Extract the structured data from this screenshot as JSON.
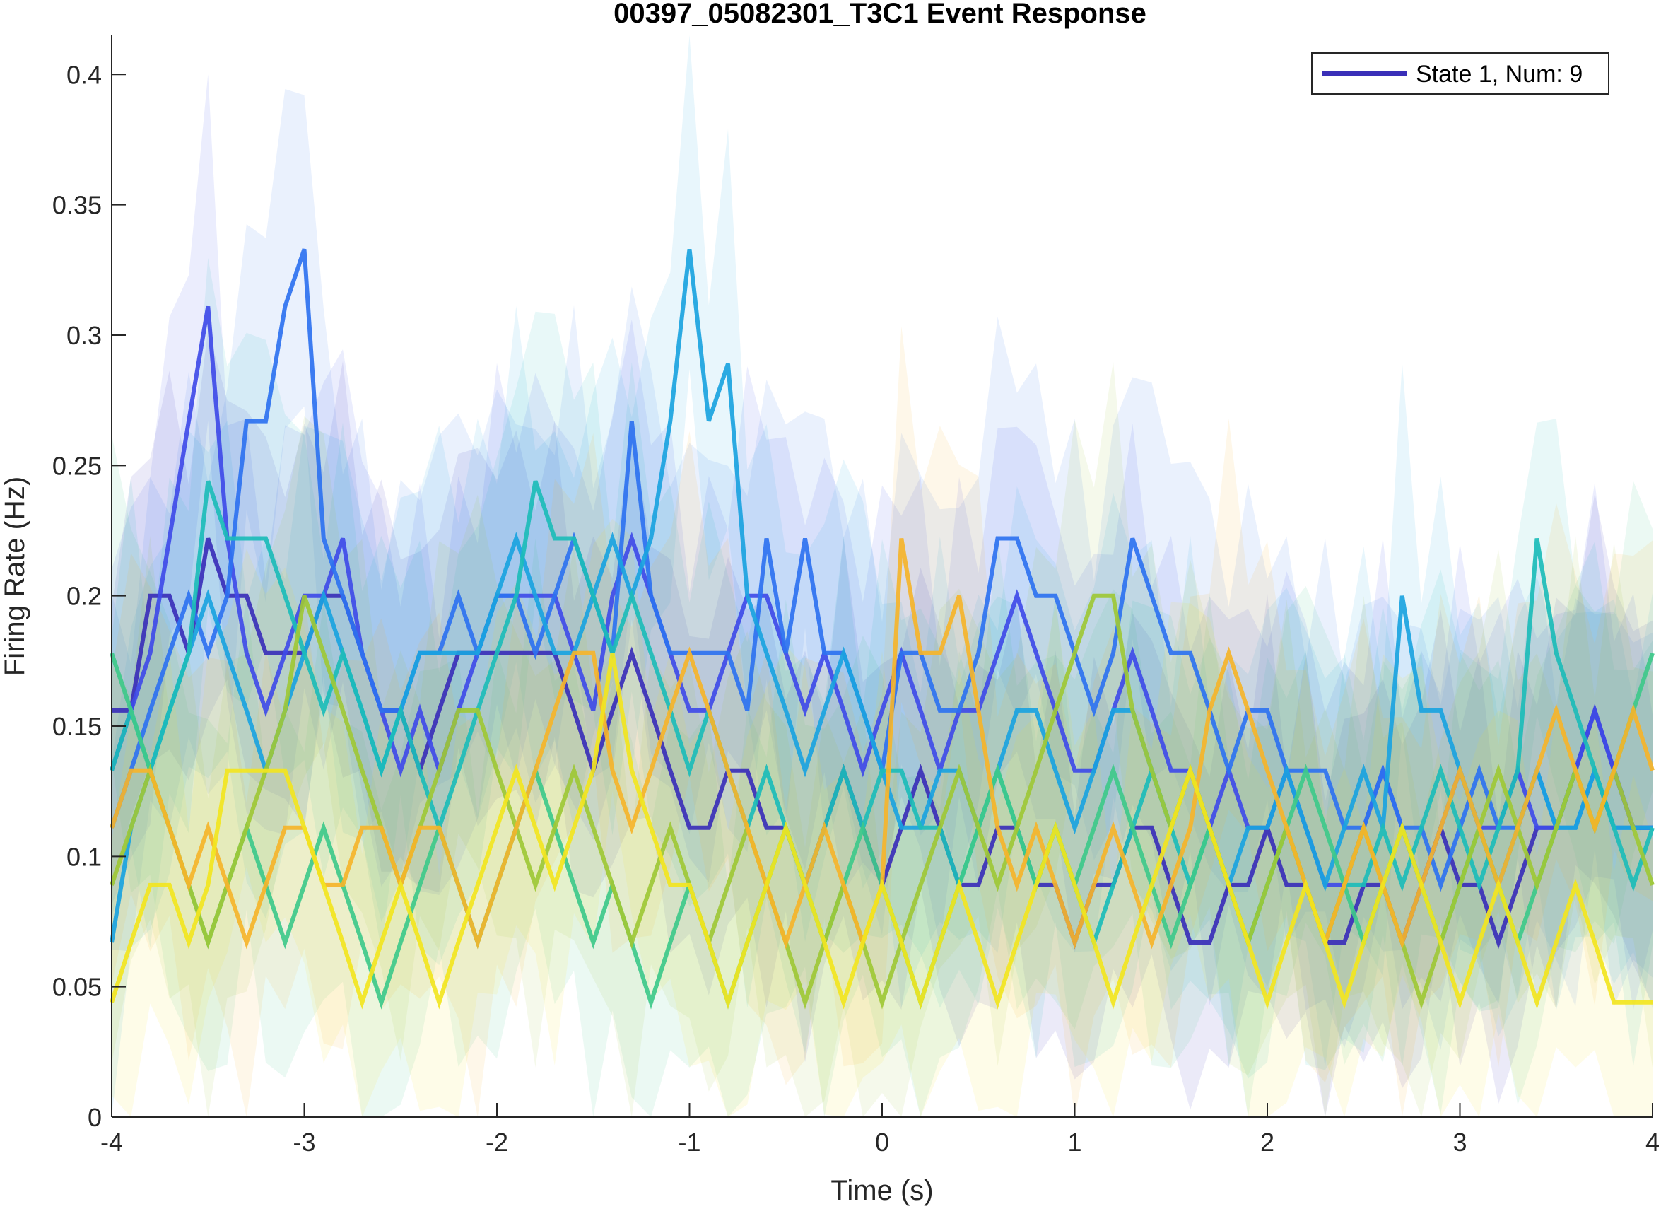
{
  "chart_data": {
    "type": "line",
    "title": "00397_05082301_T3C1 Event Response",
    "xlabel": "Time (s)",
    "ylabel": "Firing Rate (Hz)",
    "xlim": [
      -4,
      4
    ],
    "ylim": [
      0,
      0.415
    ],
    "xticks": [
      -4,
      -3,
      -2,
      -1,
      0,
      1,
      2,
      3,
      4
    ],
    "xtick_labels": [
      "-4",
      "-3",
      "-2",
      "-1",
      "0",
      "1",
      "2",
      "3",
      "4"
    ],
    "yticks": [
      0,
      0.05,
      0.1,
      0.15,
      0.2,
      0.25,
      0.3,
      0.35,
      0.4
    ],
    "ytick_labels": [
      "0",
      "0.05",
      "0.1",
      "0.15",
      "0.2",
      "0.25",
      "0.3",
      "0.35",
      "0.4"
    ],
    "grid": false,
    "legend": {
      "position": "top-right",
      "entries": [
        {
          "label": "State 1, Num: 9",
          "color": "#3a2fb8"
        }
      ]
    },
    "x": [
      -4.0,
      -3.9,
      -3.8,
      -3.7,
      -3.6,
      -3.5,
      -3.4,
      -3.3,
      -3.2,
      -3.1,
      -3.0,
      -2.9,
      -2.8,
      -2.7,
      -2.6,
      -2.5,
      -2.4,
      -2.3,
      -2.2,
      -2.1,
      -2.0,
      -1.9,
      -1.8,
      -1.7,
      -1.6,
      -1.5,
      -1.4,
      -1.3,
      -1.2,
      -1.1,
      -1.0,
      -0.9,
      -0.8,
      -0.7,
      -0.6,
      -0.5,
      -0.4,
      -0.3,
      -0.2,
      -0.1,
      0.0,
      0.1,
      0.2,
      0.3,
      0.4,
      0.5,
      0.6,
      0.7,
      0.8,
      0.9,
      1.0,
      1.1,
      1.2,
      1.3,
      1.4,
      1.5,
      1.6,
      1.7,
      1.8,
      1.9,
      2.0,
      2.1,
      2.2,
      2.3,
      2.4,
      2.5,
      2.6,
      2.7,
      2.8,
      2.9,
      3.0,
      3.1,
      3.2,
      3.3,
      3.4,
      3.5,
      3.6,
      3.7,
      3.8,
      3.9,
      4.0
    ],
    "series": [
      {
        "color": "#3a2fb8",
        "values": [
          0.156,
          0.156,
          0.2,
          0.2,
          0.178,
          0.222,
          0.2,
          0.2,
          0.178,
          0.178,
          0.178,
          0.2,
          0.2,
          0.178,
          0.156,
          0.156,
          0.133,
          0.156,
          0.178,
          0.178,
          0.178,
          0.178,
          0.178,
          0.178,
          0.156,
          0.133,
          0.156,
          0.178,
          0.156,
          0.133,
          0.111,
          0.111,
          0.133,
          0.133,
          0.111,
          0.111,
          0.089,
          0.111,
          0.133,
          0.111,
          0.089,
          0.111,
          0.133,
          0.111,
          0.089,
          0.089,
          0.111,
          0.111,
          0.089,
          0.089,
          0.067,
          0.089,
          0.089,
          0.111,
          0.111,
          0.089,
          0.067,
          0.067,
          0.089,
          0.089,
          0.111,
          0.089,
          0.089,
          0.067,
          0.067,
          0.089,
          0.089,
          0.067,
          0.089,
          0.111,
          0.089,
          0.089,
          0.067,
          0.089,
          0.111,
          0.111,
          0.133,
          0.156,
          0.133,
          0.111,
          0.111
        ]
      },
      {
        "color": "#3f4be8",
        "values": [
          0.133,
          0.156,
          0.178,
          0.222,
          0.267,
          0.311,
          0.222,
          0.178,
          0.156,
          0.178,
          0.2,
          0.2,
          0.222,
          0.178,
          0.156,
          0.133,
          0.156,
          0.133,
          0.156,
          0.178,
          0.2,
          0.2,
          0.2,
          0.2,
          0.178,
          0.156,
          0.2,
          0.222,
          0.2,
          0.178,
          0.156,
          0.156,
          0.178,
          0.2,
          0.2,
          0.178,
          0.156,
          0.178,
          0.156,
          0.133,
          0.156,
          0.178,
          0.156,
          0.133,
          0.156,
          0.156,
          0.178,
          0.2,
          0.178,
          0.156,
          0.133,
          0.133,
          0.156,
          0.178,
          0.156,
          0.133,
          0.133,
          0.111,
          0.133,
          0.111,
          0.111,
          0.133,
          0.111,
          0.089,
          0.089,
          0.111,
          0.133,
          0.111,
          0.089,
          0.111,
          0.133,
          0.111,
          0.111,
          0.133,
          0.111,
          0.111,
          0.133,
          0.156,
          0.133,
          0.111,
          0.111
        ]
      },
      {
        "color": "#2e72f0",
        "values": [
          0.111,
          0.133,
          0.156,
          0.178,
          0.2,
          0.178,
          0.2,
          0.267,
          0.267,
          0.311,
          0.333,
          0.222,
          0.2,
          0.178,
          0.156,
          0.156,
          0.178,
          0.178,
          0.2,
          0.178,
          0.2,
          0.2,
          0.178,
          0.2,
          0.222,
          0.2,
          0.178,
          0.267,
          0.2,
          0.178,
          0.178,
          0.178,
          0.178,
          0.156,
          0.222,
          0.178,
          0.222,
          0.178,
          0.178,
          0.156,
          0.133,
          0.178,
          0.178,
          0.156,
          0.156,
          0.178,
          0.222,
          0.222,
          0.2,
          0.2,
          0.178,
          0.156,
          0.178,
          0.222,
          0.2,
          0.178,
          0.178,
          0.156,
          0.133,
          0.156,
          0.156,
          0.133,
          0.133,
          0.133,
          0.111,
          0.111,
          0.133,
          0.111,
          0.111,
          0.089,
          0.111,
          0.133,
          0.111,
          0.111,
          0.133,
          0.111,
          0.111,
          0.133,
          0.111,
          0.111,
          0.111
        ]
      },
      {
        "color": "#1aa3e0",
        "values": [
          0.067,
          0.111,
          0.133,
          0.156,
          0.178,
          0.2,
          0.178,
          0.156,
          0.133,
          0.156,
          0.178,
          0.2,
          0.178,
          0.156,
          0.133,
          0.156,
          0.178,
          0.178,
          0.178,
          0.178,
          0.2,
          0.222,
          0.2,
          0.178,
          0.178,
          0.2,
          0.222,
          0.2,
          0.222,
          0.267,
          0.333,
          0.267,
          0.289,
          0.2,
          0.178,
          0.156,
          0.133,
          0.156,
          0.178,
          0.156,
          0.133,
          0.111,
          0.111,
          0.133,
          0.133,
          0.111,
          0.133,
          0.156,
          0.156,
          0.133,
          0.111,
          0.133,
          0.156,
          0.156,
          0.133,
          0.111,
          0.133,
          0.111,
          0.089,
          0.111,
          0.111,
          0.133,
          0.111,
          0.089,
          0.111,
          0.133,
          0.111,
          0.2,
          0.156,
          0.156,
          0.133,
          0.111,
          0.089,
          0.111,
          0.133,
          0.111,
          0.111,
          0.133,
          0.111,
          0.111,
          0.111
        ]
      },
      {
        "color": "#1cbcb8",
        "values": [
          0.133,
          0.156,
          0.133,
          0.156,
          0.178,
          0.244,
          0.222,
          0.222,
          0.222,
          0.2,
          0.178,
          0.156,
          0.178,
          0.156,
          0.133,
          0.156,
          0.133,
          0.111,
          0.133,
          0.156,
          0.178,
          0.2,
          0.244,
          0.222,
          0.222,
          0.2,
          0.178,
          0.2,
          0.178,
          0.156,
          0.133,
          0.156,
          0.133,
          0.111,
          0.133,
          0.111,
          0.089,
          0.111,
          0.133,
          0.111,
          0.133,
          0.133,
          0.111,
          0.111,
          0.089,
          0.111,
          0.133,
          0.111,
          0.089,
          0.111,
          0.089,
          0.067,
          0.089,
          0.111,
          0.133,
          0.111,
          0.089,
          0.111,
          0.089,
          0.067,
          0.089,
          0.111,
          0.089,
          0.067,
          0.089,
          0.089,
          0.111,
          0.089,
          0.111,
          0.133,
          0.111,
          0.089,
          0.111,
          0.133,
          0.222,
          0.178,
          0.156,
          0.133,
          0.111,
          0.089,
          0.111
        ]
      },
      {
        "color": "#3ec98a",
        "values": [
          0.178,
          0.156,
          0.133,
          0.111,
          0.089,
          0.067,
          0.089,
          0.111,
          0.089,
          0.067,
          0.089,
          0.111,
          0.089,
          0.067,
          0.044,
          0.067,
          0.089,
          0.111,
          0.089,
          0.067,
          0.089,
          0.111,
          0.133,
          0.111,
          0.089,
          0.067,
          0.089,
          0.067,
          0.044,
          0.067,
          0.089,
          0.067,
          0.044,
          0.067,
          0.089,
          0.111,
          0.089,
          0.067,
          0.089,
          0.111,
          0.089,
          0.067,
          0.044,
          0.067,
          0.089,
          0.111,
          0.133,
          0.111,
          0.089,
          0.111,
          0.089,
          0.111,
          0.133,
          0.111,
          0.089,
          0.067,
          0.089,
          0.111,
          0.089,
          0.067,
          0.089,
          0.111,
          0.133,
          0.111,
          0.089,
          0.067,
          0.089,
          0.111,
          0.089,
          0.067,
          0.089,
          0.111,
          0.089,
          0.067,
          0.089,
          0.111,
          0.133,
          0.111,
          0.133,
          0.156,
          0.178
        ]
      },
      {
        "color": "#9ec836",
        "values": [
          0.089,
          0.111,
          0.133,
          0.111,
          0.089,
          0.067,
          0.089,
          0.111,
          0.133,
          0.156,
          0.2,
          0.178,
          0.156,
          0.133,
          0.111,
          0.089,
          0.111,
          0.133,
          0.156,
          0.156,
          0.133,
          0.111,
          0.089,
          0.111,
          0.133,
          0.111,
          0.089,
          0.067,
          0.089,
          0.111,
          0.089,
          0.067,
          0.089,
          0.111,
          0.089,
          0.067,
          0.044,
          0.067,
          0.089,
          0.067,
          0.044,
          0.067,
          0.089,
          0.111,
          0.133,
          0.111,
          0.089,
          0.111,
          0.133,
          0.156,
          0.178,
          0.2,
          0.2,
          0.156,
          0.133,
          0.111,
          0.133,
          0.111,
          0.089,
          0.067,
          0.089,
          0.111,
          0.089,
          0.067,
          0.089,
          0.111,
          0.089,
          0.067,
          0.044,
          0.067,
          0.089,
          0.111,
          0.133,
          0.111,
          0.089,
          0.111,
          0.133,
          0.111,
          0.133,
          0.111,
          0.089
        ]
      },
      {
        "color": "#f5b42a",
        "values": [
          0.111,
          0.133,
          0.133,
          0.111,
          0.089,
          0.111,
          0.089,
          0.067,
          0.089,
          0.111,
          0.111,
          0.089,
          0.089,
          0.111,
          0.111,
          0.089,
          0.111,
          0.111,
          0.089,
          0.067,
          0.089,
          0.111,
          0.133,
          0.156,
          0.178,
          0.178,
          0.133,
          0.111,
          0.133,
          0.156,
          0.178,
          0.156,
          0.133,
          0.111,
          0.089,
          0.067,
          0.089,
          0.111,
          0.089,
          0.067,
          0.089,
          0.222,
          0.178,
          0.178,
          0.2,
          0.156,
          0.111,
          0.089,
          0.111,
          0.089,
          0.067,
          0.089,
          0.111,
          0.089,
          0.067,
          0.089,
          0.111,
          0.156,
          0.178,
          0.156,
          0.133,
          0.111,
          0.089,
          0.067,
          0.089,
          0.111,
          0.089,
          0.067,
          0.089,
          0.111,
          0.133,
          0.111,
          0.089,
          0.111,
          0.133,
          0.156,
          0.133,
          0.111,
          0.133,
          0.156,
          0.133
        ]
      },
      {
        "color": "#f2e51f",
        "values": [
          0.044,
          0.067,
          0.089,
          0.089,
          0.067,
          0.089,
          0.133,
          0.133,
          0.133,
          0.133,
          0.111,
          0.089,
          0.067,
          0.044,
          0.067,
          0.089,
          0.067,
          0.044,
          0.067,
          0.089,
          0.111,
          0.133,
          0.111,
          0.089,
          0.111,
          0.133,
          0.178,
          0.133,
          0.111,
          0.089,
          0.089,
          0.067,
          0.044,
          0.067,
          0.089,
          0.111,
          0.089,
          0.067,
          0.044,
          0.067,
          0.089,
          0.067,
          0.044,
          0.067,
          0.089,
          0.067,
          0.044,
          0.067,
          0.089,
          0.111,
          0.089,
          0.067,
          0.044,
          0.067,
          0.089,
          0.111,
          0.133,
          0.111,
          0.089,
          0.067,
          0.044,
          0.067,
          0.089,
          0.067,
          0.044,
          0.067,
          0.089,
          0.111,
          0.089,
          0.067,
          0.044,
          0.067,
          0.089,
          0.067,
          0.044,
          0.067,
          0.089,
          0.067,
          0.044,
          0.044,
          0.044
        ]
      }
    ]
  }
}
